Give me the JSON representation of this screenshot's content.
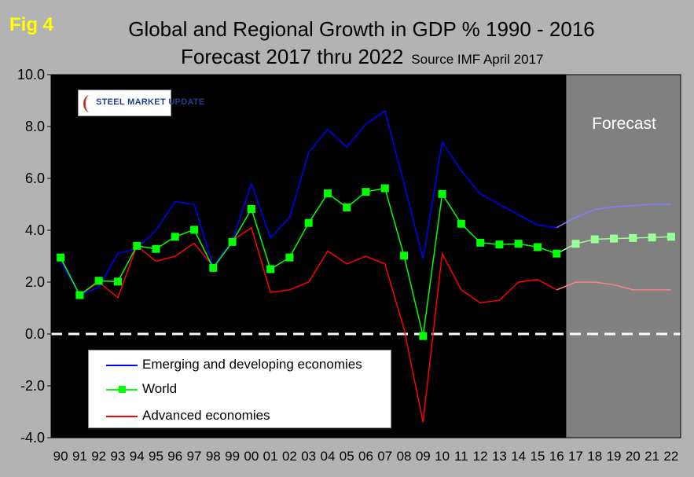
{
  "figure": {
    "label": "Fig 4",
    "title_line1": "Global and Regional Growth in GDP % 1990 - 2016",
    "title_line2": "Forecast 2017 thru 2022",
    "source": "Source IMF April 2017",
    "logo_text": "STEEL MARKET UPDATE",
    "forecast_label": "Forecast"
  },
  "colors": {
    "background": "#b3b3b3",
    "plot": "#000000",
    "forecast_shade": "#808080",
    "emerging": "#0000ff",
    "emerging_forecast": "#8080ff",
    "world": "#00ff00",
    "world_forecast": "#99ff99",
    "advanced": "#ff0000",
    "advanced_forecast": "#ff8080",
    "fig_label": "#ffff00"
  },
  "chart_data": {
    "type": "line",
    "title": "Global and Regional Growth in GDP % 1990 - 2016",
    "subtitle": "Forecast 2017 thru 2022",
    "xlabel": "",
    "ylabel": "",
    "ylim": [
      -4,
      10
    ],
    "yticks": [
      10,
      8,
      6,
      4,
      2,
      0,
      -2,
      -4
    ],
    "ytick_labels": [
      "10.0",
      "8.0",
      "6.0",
      "4.0",
      "2.0",
      "0.0",
      "-2.0",
      "-4.0"
    ],
    "categories": [
      "90",
      "91",
      "92",
      "93",
      "94",
      "95",
      "96",
      "97",
      "98",
      "99",
      "00",
      "01",
      "02",
      "03",
      "04",
      "05",
      "06",
      "07",
      "08",
      "09",
      "10",
      "11",
      "12",
      "13",
      "14",
      "15",
      "16",
      "17",
      "18",
      "19",
      "20",
      "21",
      "22"
    ],
    "forecast_start_index": 27,
    "zero_line": "dashed white",
    "legend_position": "bottom-left",
    "series": [
      {
        "name": "Emerging and developing economies",
        "key": "emerging",
        "values": [
          2.8,
          1.5,
          1.8,
          3.1,
          3.3,
          4.0,
          5.1,
          5.0,
          2.6,
          3.6,
          5.8,
          3.7,
          4.5,
          7.0,
          7.9,
          7.2,
          8.1,
          8.6,
          5.8,
          2.9,
          7.4,
          6.3,
          5.4,
          5.0,
          4.6,
          4.2,
          4.1,
          4.5,
          4.8,
          4.9,
          4.95,
          5.0,
          5.0
        ]
      },
      {
        "name": "World",
        "key": "world",
        "values": [
          2.95,
          1.5,
          2.05,
          2.02,
          3.4,
          3.28,
          3.75,
          4.02,
          2.55,
          3.55,
          4.82,
          2.5,
          2.95,
          4.28,
          5.42,
          4.88,
          5.48,
          5.62,
          3.02,
          -0.08,
          5.4,
          4.25,
          3.52,
          3.45,
          3.48,
          3.35,
          3.1,
          3.48,
          3.65,
          3.68,
          3.7,
          3.72,
          3.75
        ]
      },
      {
        "name": "Advanced economies",
        "key": "advanced",
        "values": [
          2.9,
          1.5,
          2.0,
          1.4,
          3.4,
          2.8,
          3.0,
          3.5,
          2.6,
          3.6,
          4.1,
          1.6,
          1.7,
          2.0,
          3.2,
          2.7,
          3.0,
          2.7,
          0.2,
          -3.4,
          3.1,
          1.7,
          1.2,
          1.3,
          2.0,
          2.1,
          1.7,
          2.0,
          2.0,
          1.9,
          1.7,
          1.7,
          1.7
        ]
      }
    ]
  }
}
